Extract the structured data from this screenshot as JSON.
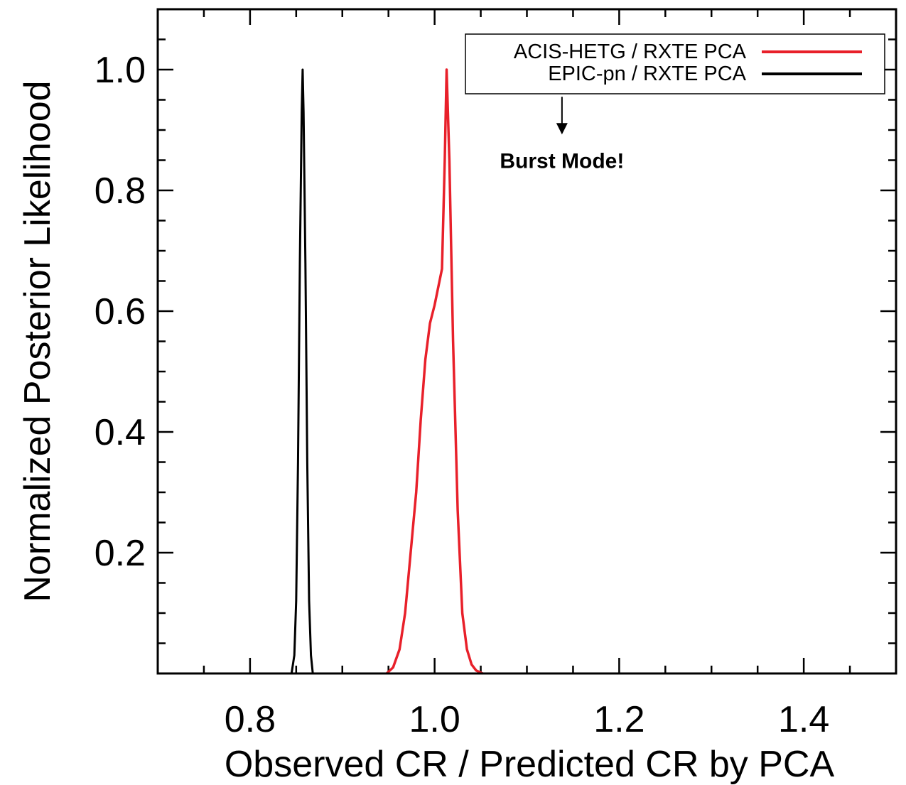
{
  "chart_data": {
    "type": "line",
    "title": "",
    "xlabel": "Observed CR / Predicted CR by PCA",
    "ylabel": "Normalized Posterior Likelihood",
    "xlim": [
      0.7,
      1.5
    ],
    "ylim": [
      0.0,
      1.1
    ],
    "x_ticks": [
      0.8,
      1.0,
      1.2,
      1.4
    ],
    "x_tick_labels": [
      "0.8",
      "1.0",
      "1.2",
      "1.4"
    ],
    "y_ticks": [
      0.2,
      0.4,
      0.6,
      0.8,
      1.0
    ],
    "y_tick_labels": [
      "0.2",
      "0.4",
      "0.6",
      "0.8",
      "1.0"
    ],
    "grid": false,
    "legend_position": "top-right",
    "series": [
      {
        "name": "ACIS-HETG / RXTE PCA",
        "color": "#e8202a",
        "x": [
          0.948,
          0.955,
          0.962,
          0.968,
          0.974,
          0.98,
          0.985,
          0.99,
          0.995,
          1.0,
          1.004,
          1.008,
          1.011,
          1.013,
          1.016,
          1.02,
          1.025,
          1.03,
          1.035,
          1.04,
          1.045,
          1.052
        ],
        "y": [
          0.0,
          0.01,
          0.04,
          0.1,
          0.2,
          0.3,
          0.42,
          0.52,
          0.58,
          0.61,
          0.64,
          0.67,
          0.85,
          1.0,
          0.85,
          0.55,
          0.27,
          0.1,
          0.04,
          0.015,
          0.005,
          0.0
        ]
      },
      {
        "name": "EPIC-pn / RXTE PCA",
        "color": "#000000",
        "x": [
          0.845,
          0.848,
          0.85,
          0.852,
          0.854,
          0.856,
          0.857,
          0.858,
          0.86,
          0.862,
          0.864,
          0.866,
          0.868
        ],
        "y": [
          0.0,
          0.03,
          0.12,
          0.35,
          0.68,
          0.93,
          1.0,
          0.93,
          0.68,
          0.35,
          0.12,
          0.03,
          0.0
        ]
      }
    ],
    "annotations": [
      {
        "text": "Burst Mode!",
        "x": 1.138,
        "y": 0.87,
        "arrow_from": [
          1.138,
          0.955
        ],
        "arrow_to": [
          1.138,
          0.895
        ]
      }
    ]
  }
}
